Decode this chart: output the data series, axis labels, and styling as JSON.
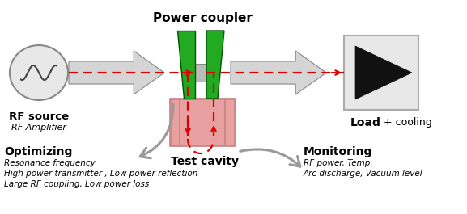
{
  "bg_color": "#ffffff",
  "power_coupler_label": "Power coupler",
  "rf_source_label1": "RF source",
  "rf_source_label2": "RF Amplifier",
  "load_label1": "Load",
  "load_label2": "+ cooling",
  "test_cavity_label": "Test cavity",
  "optimizing_label": "Optimizing",
  "optimizing_lines": [
    "Resonance frequency",
    "High power transmitter , Low power reflection",
    "Large RF coupling, Low power loss"
  ],
  "monitoring_label": "Monitoring",
  "monitoring_lines": [
    "RF power, Temp.",
    "Arc discharge, Vacuum level"
  ],
  "coupler_color": "#22aa22",
  "cavity_color": "#e8a0a0",
  "dashed_color": "#dd0000",
  "arrow_gray": "#aaaaaa",
  "arrow_dark": "#888888"
}
